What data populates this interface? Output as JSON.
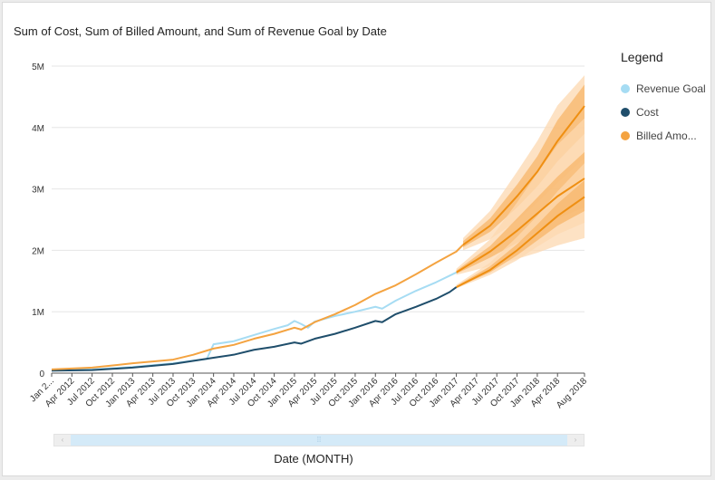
{
  "chart_data": {
    "type": "line",
    "title": "Sum of Cost, Sum of Billed Amount, and Sum of Revenue Goal by Date",
    "xlabel": "Date (MONTH)",
    "ylabel": "",
    "ylim": [
      0,
      5000000
    ],
    "yticks": [
      0,
      1000000,
      2000000,
      3000000,
      4000000,
      5000000
    ],
    "ytick_labels": [
      "0",
      "1M",
      "2M",
      "3M",
      "4M",
      "5M"
    ],
    "xlim": [
      "2012-01",
      "2018-08"
    ],
    "x_tick_labels": [
      "Jan 2...",
      "Apr 2012",
      "Jul 2012",
      "Oct 2012",
      "Jan 2013",
      "Apr 2013",
      "Jul 2013",
      "Oct 2013",
      "Jan 2014",
      "Apr 2014",
      "Jul 2014",
      "Oct 2014",
      "Jan 2015",
      "Apr 2015",
      "Jul 2015",
      "Oct 2015",
      "Jan 2016",
      "Apr 2016",
      "Jul 2016",
      "Oct 2016",
      "Jan 2017",
      "Apr 2017",
      "Jul 2017",
      "Oct 2017",
      "Jan 2018",
      "Apr 2018",
      "Aug 2018"
    ],
    "x_tick_dates": [
      "2012-01",
      "2012-04",
      "2012-07",
      "2012-10",
      "2013-01",
      "2013-04",
      "2013-07",
      "2013-10",
      "2014-01",
      "2014-04",
      "2014-07",
      "2014-10",
      "2015-01",
      "2015-04",
      "2015-07",
      "2015-10",
      "2016-01",
      "2016-04",
      "2016-07",
      "2016-10",
      "2017-01",
      "2017-04",
      "2017-07",
      "2017-10",
      "2018-01",
      "2018-04",
      "2018-08"
    ],
    "grid": true,
    "legend_position": "right",
    "series": [
      {
        "name": "Revenue Goal",
        "color": "#a6dcf3",
        "points": [
          [
            "2012-01",
            50000
          ],
          [
            "2012-07",
            60000
          ],
          [
            "2013-01",
            100000
          ],
          [
            "2013-07",
            160000
          ],
          [
            "2013-12",
            230000
          ],
          [
            "2014-01",
            470000
          ],
          [
            "2014-04",
            520000
          ],
          [
            "2014-07",
            620000
          ],
          [
            "2014-10",
            720000
          ],
          [
            "2014-12",
            780000
          ],
          [
            "2015-01",
            850000
          ],
          [
            "2015-02",
            800000
          ],
          [
            "2015-03",
            740000
          ],
          [
            "2015-04",
            840000
          ],
          [
            "2015-07",
            930000
          ],
          [
            "2015-10",
            1000000
          ],
          [
            "2016-01",
            1080000
          ],
          [
            "2016-02",
            1050000
          ],
          [
            "2016-04",
            1180000
          ],
          [
            "2016-07",
            1340000
          ],
          [
            "2016-10",
            1480000
          ],
          [
            "2017-01",
            1640000
          ]
        ]
      },
      {
        "name": "Cost",
        "color": "#1f4e6b",
        "points": [
          [
            "2012-01",
            40000
          ],
          [
            "2012-07",
            50000
          ],
          [
            "2013-01",
            90000
          ],
          [
            "2013-07",
            150000
          ],
          [
            "2014-01",
            250000
          ],
          [
            "2014-04",
            300000
          ],
          [
            "2014-07",
            380000
          ],
          [
            "2014-10",
            430000
          ],
          [
            "2015-01",
            500000
          ],
          [
            "2015-02",
            480000
          ],
          [
            "2015-04",
            560000
          ],
          [
            "2015-07",
            640000
          ],
          [
            "2015-10",
            740000
          ],
          [
            "2016-01",
            850000
          ],
          [
            "2016-02",
            830000
          ],
          [
            "2016-04",
            960000
          ],
          [
            "2016-07",
            1080000
          ],
          [
            "2016-10",
            1210000
          ],
          [
            "2016-12",
            1320000
          ],
          [
            "2017-01",
            1400000
          ]
        ]
      },
      {
        "name": "Billed Amo...",
        "color": "#f4a340",
        "points": [
          [
            "2012-01",
            60000
          ],
          [
            "2012-07",
            90000
          ],
          [
            "2013-01",
            160000
          ],
          [
            "2013-07",
            220000
          ],
          [
            "2013-10",
            300000
          ],
          [
            "2014-01",
            400000
          ],
          [
            "2014-04",
            460000
          ],
          [
            "2014-07",
            560000
          ],
          [
            "2014-10",
            640000
          ],
          [
            "2015-01",
            740000
          ],
          [
            "2015-02",
            710000
          ],
          [
            "2015-04",
            830000
          ],
          [
            "2015-07",
            960000
          ],
          [
            "2015-10",
            1110000
          ],
          [
            "2016-01",
            1290000
          ],
          [
            "2016-04",
            1430000
          ],
          [
            "2016-07",
            1610000
          ],
          [
            "2016-10",
            1800000
          ],
          [
            "2017-01",
            1980000
          ],
          [
            "2017-02",
            2090000
          ]
        ]
      }
    ],
    "forecasts": [
      {
        "name": "Billed Amo...",
        "points": [
          [
            "2017-02",
            2090000
          ],
          [
            "2017-06",
            2400000
          ],
          [
            "2017-10",
            2880000
          ],
          [
            "2018-01",
            3280000
          ],
          [
            "2018-04",
            3780000
          ],
          [
            "2018-08",
            4350000
          ]
        ],
        "band_inner": [
          [
            "2017-02",
            2050000,
            2150000
          ],
          [
            "2017-06",
            2300000,
            2520000
          ],
          [
            "2017-10",
            2700000,
            3070000
          ],
          [
            "2018-01",
            3040000,
            3530000
          ],
          [
            "2018-04",
            3450000,
            4120000
          ],
          [
            "2018-08",
            3900000,
            4700000
          ]
        ],
        "band_outer": [
          [
            "2017-02",
            2000000,
            2200000
          ],
          [
            "2017-06",
            2180000,
            2640000
          ],
          [
            "2017-10",
            2480000,
            3280000
          ],
          [
            "2018-01",
            2780000,
            3780000
          ],
          [
            "2018-04",
            3100000,
            4360000
          ],
          [
            "2018-08",
            3500000,
            4850000
          ]
        ]
      },
      {
        "name": "Revenue Goal",
        "points": [
          [
            "2017-01",
            1640000
          ],
          [
            "2017-06",
            1980000
          ],
          [
            "2017-10",
            2320000
          ],
          [
            "2018-01",
            2600000
          ],
          [
            "2018-04",
            2880000
          ],
          [
            "2018-08",
            3170000
          ]
        ],
        "band_inner": [
          [
            "2017-01",
            1620000,
            1670000
          ],
          [
            "2017-06",
            1880000,
            2070000
          ],
          [
            "2017-10",
            2120000,
            2520000
          ],
          [
            "2018-01",
            2320000,
            2860000
          ],
          [
            "2018-04",
            2520000,
            3200000
          ],
          [
            "2018-08",
            2700000,
            3600000
          ]
        ],
        "band_outer": [
          [
            "2017-01",
            1600000,
            1700000
          ],
          [
            "2017-06",
            1740000,
            2180000
          ],
          [
            "2017-10",
            1860000,
            2780000
          ],
          [
            "2018-01",
            1960000,
            3260000
          ],
          [
            "2018-04",
            2080000,
            3720000
          ],
          [
            "2018-08",
            2200000,
            4150000
          ]
        ]
      },
      {
        "name": "Cost",
        "points": [
          [
            "2017-01",
            1400000
          ],
          [
            "2017-06",
            1680000
          ],
          [
            "2017-10",
            2000000
          ],
          [
            "2018-01",
            2280000
          ],
          [
            "2018-04",
            2560000
          ],
          [
            "2018-08",
            2870000
          ]
        ],
        "band_inner": [
          [
            "2017-01",
            1390000,
            1420000
          ],
          [
            "2017-06",
            1640000,
            1740000
          ],
          [
            "2017-10",
            1920000,
            2100000
          ],
          [
            "2018-01",
            2160000,
            2420000
          ],
          [
            "2018-04",
            2400000,
            2760000
          ],
          [
            "2018-08",
            2640000,
            3140000
          ]
        ],
        "band_outer": [
          [
            "2017-01",
            1380000,
            1440000
          ],
          [
            "2017-06",
            1600000,
            1800000
          ],
          [
            "2017-10",
            1840000,
            2220000
          ],
          [
            "2018-01",
            2060000,
            2560000
          ],
          [
            "2018-04",
            2260000,
            2960000
          ],
          [
            "2018-08",
            2450000,
            3420000
          ]
        ]
      }
    ]
  },
  "legend": {
    "title": "Legend",
    "items": [
      {
        "label": "Revenue Goal",
        "color": "#a6dcf3"
      },
      {
        "label": "Cost",
        "color": "#1f4e6b"
      },
      {
        "label": "Billed Amo...",
        "color": "#f4a340"
      }
    ]
  },
  "scrollbar": {
    "left_arrow": "‹",
    "right_arrow": "›",
    "grip": "⁞⁞"
  },
  "forecast_colors": {
    "line": "#ef8f12",
    "band_inner": "#f7b56a",
    "band_outer": "#fcd8b0"
  }
}
